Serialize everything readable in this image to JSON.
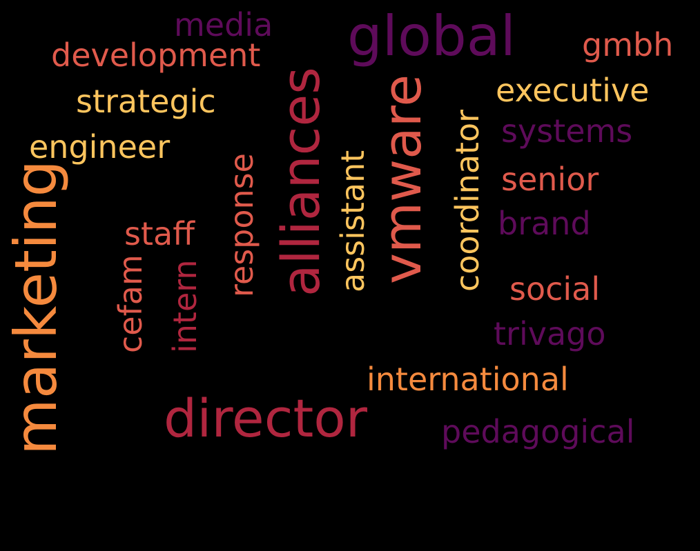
{
  "colors": {
    "background": "#000000",
    "purple": "#5e0b5a",
    "crimson": "#b0263f",
    "coral": "#e05a4c",
    "orange": "#f58a3e",
    "yellow": "#fec55e"
  },
  "words": {
    "media": "media",
    "development": "development",
    "global": "global",
    "gmbh": "gmbh",
    "strategic": "strategic",
    "executive": "executive",
    "engineer": "engineer",
    "systems": "systems",
    "senior": "senior",
    "brand": "brand",
    "staff": "staff",
    "social": "social",
    "trivago": "trivago",
    "international": "international",
    "director": "director",
    "pedagogical": "pedagogical",
    "marketing": "marketing",
    "alliances": "alliances",
    "vmware": "vmware",
    "response": "response",
    "assistant": "assistant",
    "coordinator": "coordinator",
    "cefam": "cefam",
    "intern": "intern"
  }
}
